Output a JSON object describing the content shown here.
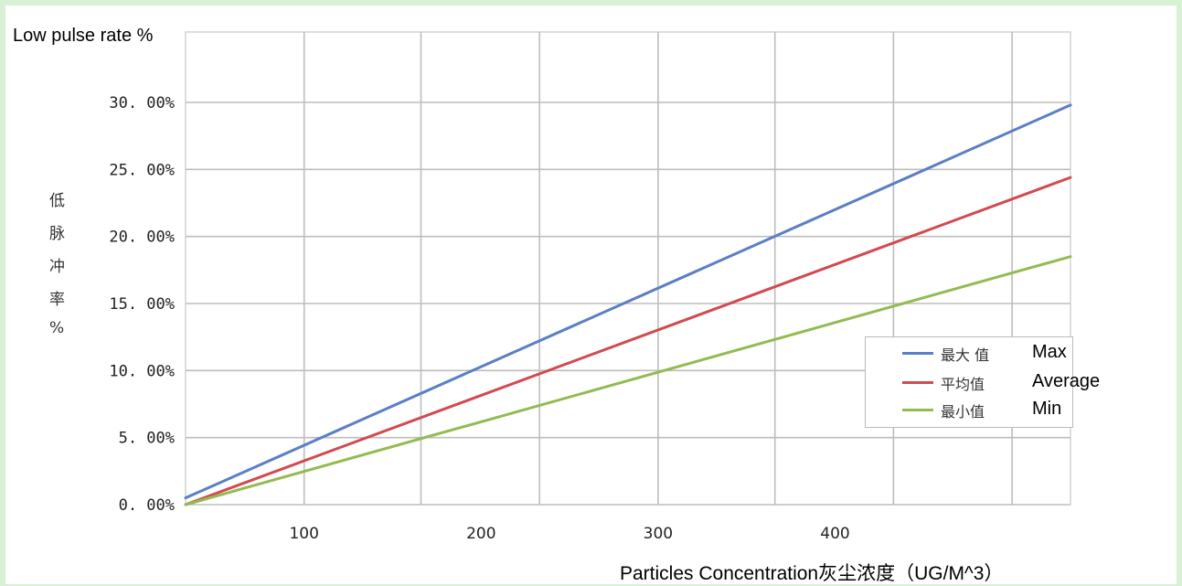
{
  "ytitle_en": "Low pulse rate %",
  "ylabel_cjk": [
    "低",
    "脉",
    "冲",
    "率",
    "%"
  ],
  "xlabel": "Particles Concentration灰尘浓度（UG/M^3）",
  "chart_data": {
    "type": "line",
    "x_tick_labels": [
      "100",
      "200",
      "300",
      "400"
    ],
    "y_tick_labels": [
      "0. 00%",
      "5. 00%",
      "10. 00%",
      "15. 00%",
      "20. 00%",
      "25. 00%",
      "30. 00%"
    ],
    "ylim": [
      0,
      30
    ],
    "xlim": [
      0,
      500
    ],
    "x_gridlines": [
      67,
      133,
      200,
      267,
      333,
      400,
      467
    ],
    "x_ticks": [
      67,
      167,
      267,
      367
    ],
    "grid": true,
    "legend_position": "right",
    "series": [
      {
        "name_cjk": "最大 值",
        "name_en": "Max",
        "color": "#5b7fc4",
        "x": [
          0,
          500
        ],
        "y": [
          0.5,
          29.8
        ]
      },
      {
        "name_cjk": "平均值",
        "name_en": "Average",
        "color": "#d24a4f",
        "x": [
          0,
          500
        ],
        "y": [
          0.0,
          24.4
        ]
      },
      {
        "name_cjk": "最小值",
        "name_en": "Min",
        "color": "#93bb4f",
        "x": [
          0,
          500
        ],
        "y": [
          0.0,
          18.5
        ]
      }
    ]
  }
}
